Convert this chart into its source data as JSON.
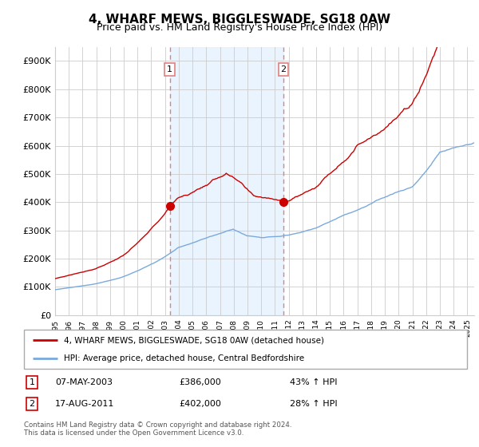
{
  "title": "4, WHARF MEWS, BIGGLESWADE, SG18 0AW",
  "subtitle": "Price paid vs. HM Land Registry's House Price Index (HPI)",
  "ylabel_ticks": [
    "£0",
    "£100K",
    "£200K",
    "£300K",
    "£400K",
    "£500K",
    "£600K",
    "£700K",
    "£800K",
    "£900K"
  ],
  "ytick_values": [
    0,
    100000,
    200000,
    300000,
    400000,
    500000,
    600000,
    700000,
    800000,
    900000
  ],
  "ylim": [
    0,
    950000
  ],
  "xlim_start": 1995.0,
  "xlim_end": 2025.5,
  "sale1_x": 2003.35,
  "sale1_y": 386000,
  "sale2_x": 2011.62,
  "sale2_y": 402000,
  "sale1_date": "07-MAY-2003",
  "sale1_price": "£386,000",
  "sale1_hpi": "43% ↑ HPI",
  "sale2_date": "17-AUG-2011",
  "sale2_price": "£402,000",
  "sale2_hpi": "28% ↑ HPI",
  "legend_red": "4, WHARF MEWS, BIGGLESWADE, SG18 0AW (detached house)",
  "legend_blue": "HPI: Average price, detached house, Central Bedfordshire",
  "footer": "Contains HM Land Registry data © Crown copyright and database right 2024.\nThis data is licensed under the Open Government Licence v3.0.",
  "red_color": "#cc0000",
  "blue_color": "#7aaadd",
  "vline_color": "#e08080",
  "bg_shade_color": "#ddeeff",
  "grid_color": "#cccccc",
  "title_fontsize": 11,
  "subtitle_fontsize": 9
}
